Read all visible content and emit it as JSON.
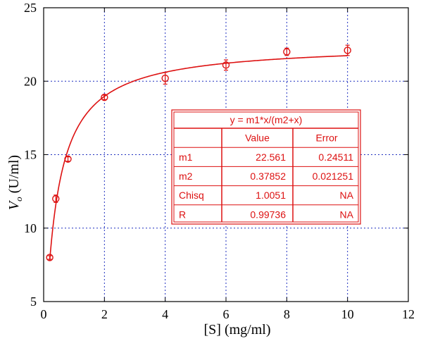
{
  "chart_data": {
    "type": "scatter",
    "xlabel": "[S] (mg/ml)",
    "ylabel_symbol": "V",
    "ylabel_subscript": "o",
    "ylabel_unit": " (U/ml)",
    "xlim": [
      0,
      12
    ],
    "ylim": [
      5,
      25
    ],
    "xticks": [
      0,
      2,
      4,
      6,
      8,
      10,
      12
    ],
    "yticks": [
      5,
      10,
      15,
      20,
      25
    ],
    "grid": true,
    "grid_style": "dotted",
    "color": "#dd1111",
    "axis_color": "#000000",
    "grid_color": "#1f2fbf",
    "points": [
      {
        "x": 0.2,
        "y": 8.0,
        "err": 0.12
      },
      {
        "x": 0.4,
        "y": 12.0,
        "err": 0.25
      },
      {
        "x": 0.8,
        "y": 14.7,
        "err": 0.15
      },
      {
        "x": 2,
        "y": 18.9,
        "err": 0.15
      },
      {
        "x": 4,
        "y": 20.2,
        "err": 0.4
      },
      {
        "x": 6,
        "y": 21.1,
        "err": 0.35
      },
      {
        "x": 8,
        "y": 22.0,
        "err": 0.25
      },
      {
        "x": 10,
        "y": 22.1,
        "err": 0.35
      }
    ],
    "fit": {
      "equation": "y = m1*x/(m2+x)",
      "m1": 22.561,
      "m2": 0.37852,
      "x_range": [
        0.2,
        10
      ]
    },
    "fit_table": {
      "header": [
        "",
        "Value",
        "Error"
      ],
      "rows": [
        [
          "m1",
          "22.561",
          "0.24511"
        ],
        [
          "m2",
          "0.37852",
          "0.021251"
        ],
        [
          "Chisq",
          "1.0051",
          "NA"
        ],
        [
          "R",
          "0.99736",
          "NA"
        ]
      ]
    }
  }
}
